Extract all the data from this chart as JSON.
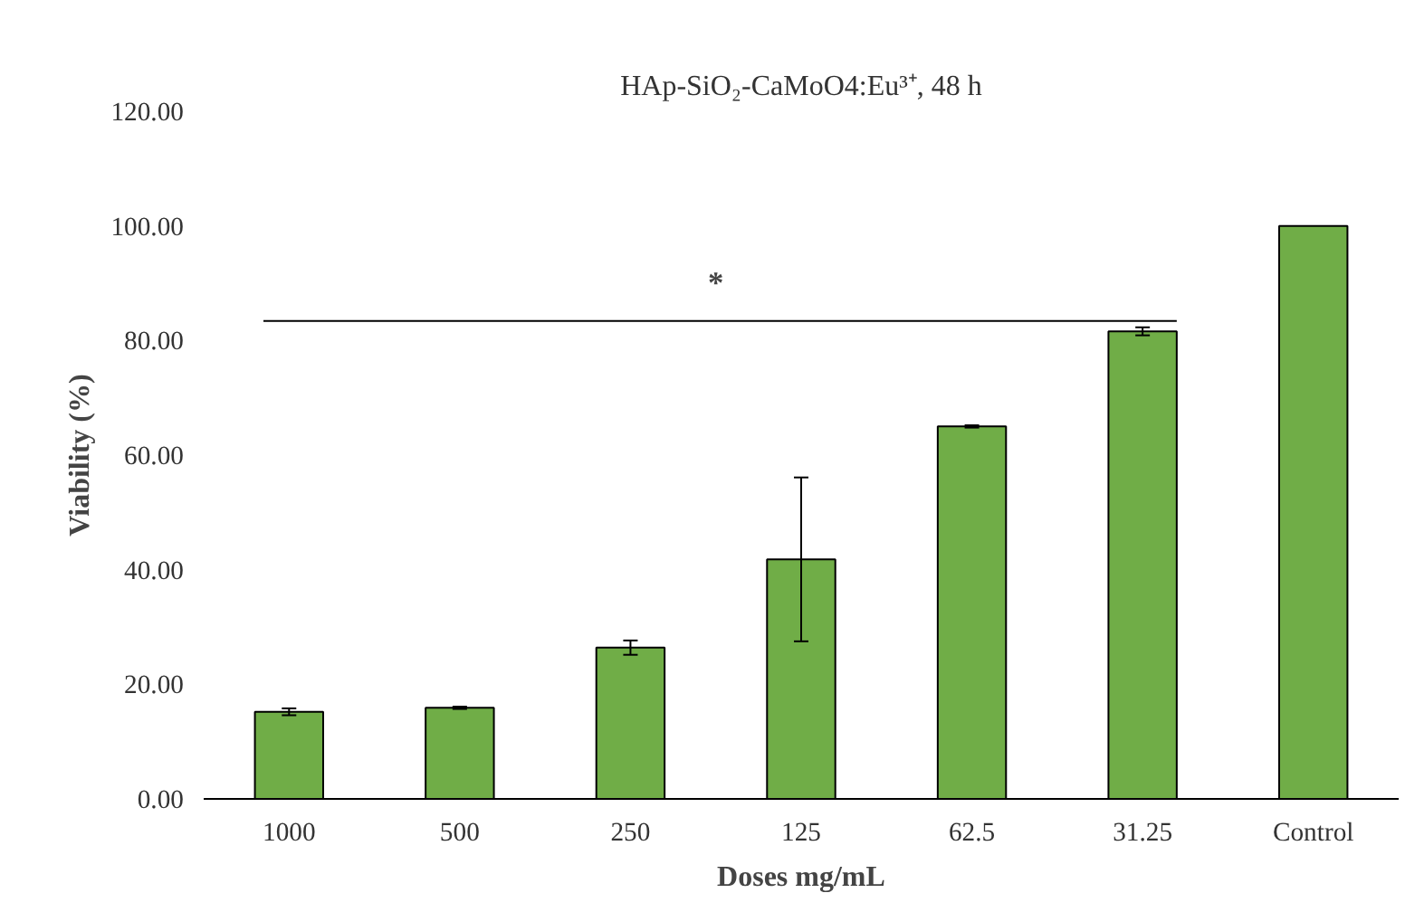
{
  "chart_data": {
    "type": "bar",
    "title": "HAp-SiO₂-CaMoO4:Eu³⁺, 48 h",
    "xlabel": "Doses mg/mL",
    "ylabel": "Viability (%)",
    "categories": [
      "1000",
      "500",
      "250",
      "125",
      "62.5",
      "31.25",
      "Control"
    ],
    "values": [
      15.2,
      15.9,
      26.4,
      41.8,
      65.0,
      81.6,
      100.0
    ],
    "errors": [
      0.6,
      0.2,
      1.25,
      14.3,
      0.2,
      0.7,
      null
    ],
    "color": "#70ad47",
    "ylim": [
      0,
      120
    ],
    "yticks": [
      {
        "value": 0,
        "label": "0.00"
      },
      {
        "value": 20,
        "label": "20.00"
      },
      {
        "value": 40,
        "label": "40.00"
      },
      {
        "value": 60,
        "label": "60.00"
      },
      {
        "value": 80,
        "label": "80.00"
      },
      {
        "value": 100,
        "label": "100.00"
      },
      {
        "value": 120,
        "label": "120.00"
      }
    ],
    "annotations": [
      "*"
    ],
    "grid": false
  }
}
